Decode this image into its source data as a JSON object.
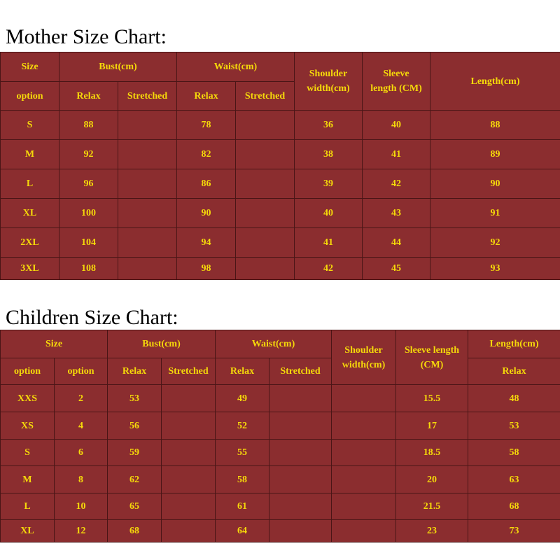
{
  "mother": {
    "title": "Mother Size Chart:",
    "headers": {
      "size": "Size",
      "option": "option",
      "bust": "Bust(cm)",
      "waist": "Waist(cm)",
      "relax": "Relax",
      "stretched": "Stretched",
      "shoulder_1": "Shoulder",
      "shoulder_2": "width(cm)",
      "sleeve_1": "Sleeve",
      "sleeve_2": "length (CM)",
      "length": "Length(cm)"
    },
    "rows": [
      {
        "size": "S",
        "bust_relax": "88",
        "bust_stretched": "",
        "waist_relax": "78",
        "waist_stretched": "",
        "shoulder": "36",
        "sleeve": "40",
        "length": "88"
      },
      {
        "size": "M",
        "bust_relax": "92",
        "bust_stretched": "",
        "waist_relax": "82",
        "waist_stretched": "",
        "shoulder": "38",
        "sleeve": "41",
        "length": "89"
      },
      {
        "size": "L",
        "bust_relax": "96",
        "bust_stretched": "",
        "waist_relax": "86",
        "waist_stretched": "",
        "shoulder": "39",
        "sleeve": "42",
        "length": "90"
      },
      {
        "size": "XL",
        "bust_relax": "100",
        "bust_stretched": "",
        "waist_relax": "90",
        "waist_stretched": "",
        "shoulder": "40",
        "sleeve": "43",
        "length": "91"
      },
      {
        "size": "2XL",
        "bust_relax": "104",
        "bust_stretched": "",
        "waist_relax": "94",
        "waist_stretched": "",
        "shoulder": "41",
        "sleeve": "44",
        "length": "92"
      },
      {
        "size": "3XL",
        "bust_relax": "108",
        "bust_stretched": "",
        "waist_relax": "98",
        "waist_stretched": "",
        "shoulder": "42",
        "sleeve": "45",
        "length": "93"
      }
    ]
  },
  "children": {
    "title": "Children Size Chart:",
    "headers": {
      "size": "Size",
      "option_1": "option",
      "option_2": "option",
      "bust": "Bust(cm)",
      "waist": "Waist(cm)",
      "relax": "Relax",
      "stretched": "Stretched",
      "shoulder_1": "Shoulder",
      "shoulder_2": "width(cm)",
      "sleeve_1": "Sleeve length",
      "sleeve_2": "(CM)",
      "length": "Length(cm)",
      "length_relax": "Relax"
    },
    "rows": [
      {
        "size": "XXS",
        "option": "2",
        "bust_relax": "53",
        "bust_stretched": "",
        "waist_relax": "49",
        "waist_stretched": "",
        "shoulder": "",
        "sleeve": "15.5",
        "length": "48"
      },
      {
        "size": "XS",
        "option": "4",
        "bust_relax": "56",
        "bust_stretched": "",
        "waist_relax": "52",
        "waist_stretched": "",
        "shoulder": "",
        "sleeve": "17",
        "length": "53"
      },
      {
        "size": "S",
        "option": "6",
        "bust_relax": "59",
        "bust_stretched": "",
        "waist_relax": "55",
        "waist_stretched": "",
        "shoulder": "",
        "sleeve": "18.5",
        "length": "58"
      },
      {
        "size": "M",
        "option": "8",
        "bust_relax": "62",
        "bust_stretched": "",
        "waist_relax": "58",
        "waist_stretched": "",
        "shoulder": "",
        "sleeve": "20",
        "length": "63"
      },
      {
        "size": "L",
        "option": "10",
        "bust_relax": "65",
        "bust_stretched": "",
        "waist_relax": "61",
        "waist_stretched": "",
        "shoulder": "",
        "sleeve": "21.5",
        "length": "68"
      },
      {
        "size": "XL",
        "option": "12",
        "bust_relax": "68",
        "bust_stretched": "",
        "waist_relax": "64",
        "waist_stretched": "",
        "shoulder": "",
        "sleeve": "23",
        "length": "73"
      }
    ]
  },
  "colors": {
    "table_bg": "#8b2d2f",
    "table_text": "#f5d90a",
    "grid_line": "#4a1516"
  }
}
